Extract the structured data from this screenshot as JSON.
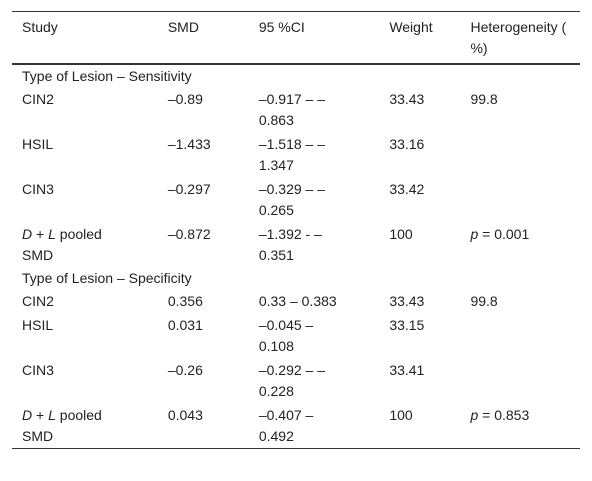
{
  "table": {
    "header": [
      "Study",
      "SMD",
      "95 %CI",
      "Weight",
      "Heterogeneity ( %)"
    ],
    "sections": [
      {
        "title": "Type of Lesion – Sensitivity",
        "rows": [
          [
            "CIN2",
            "–0.89",
            "–0.917 – –0.863",
            "33.43",
            "99.8"
          ],
          [
            "HSIL",
            "–1.433",
            "–1.518 – –1.347",
            "33.16"
          ],
          [
            "CIN3",
            "–0.297",
            "–0.329 – –0.265",
            "33.42"
          ],
          [
            [
              {
                "text": "D",
                "italic": true
              },
              {
                "text": " + "
              },
              {
                "text": "L",
                "italic": true
              },
              {
                "text": " pooled SMD"
              }
            ],
            "–0.872",
            "–1.392 - –0.351",
            "100",
            [
              {
                "text": "p",
                "italic": true
              },
              {
                "text": " = 0.001"
              }
            ]
          ]
        ]
      },
      {
        "title": "Type of Lesion – Specificity",
        "rows": [
          [
            "CIN2",
            "0.356",
            "0.33 – 0.383",
            "33.43",
            "99.8"
          ],
          [
            "HSIL",
            "0.031",
            "–0.045 – 0.108",
            "33.15"
          ],
          [
            "CIN3",
            "–0.26",
            "–0.292 – –0.228",
            "33.41"
          ],
          [
            [
              {
                "text": "D",
                "italic": true
              },
              {
                "text": " + "
              },
              {
                "text": "L",
                "italic": true
              },
              {
                "text": " pooled SMD"
              }
            ],
            "0.043",
            "–0.407 – 0.492",
            "100",
            [
              {
                "text": "p",
                "italic": true
              },
              {
                "text": " = 0.853"
              }
            ]
          ]
        ]
      }
    ]
  }
}
